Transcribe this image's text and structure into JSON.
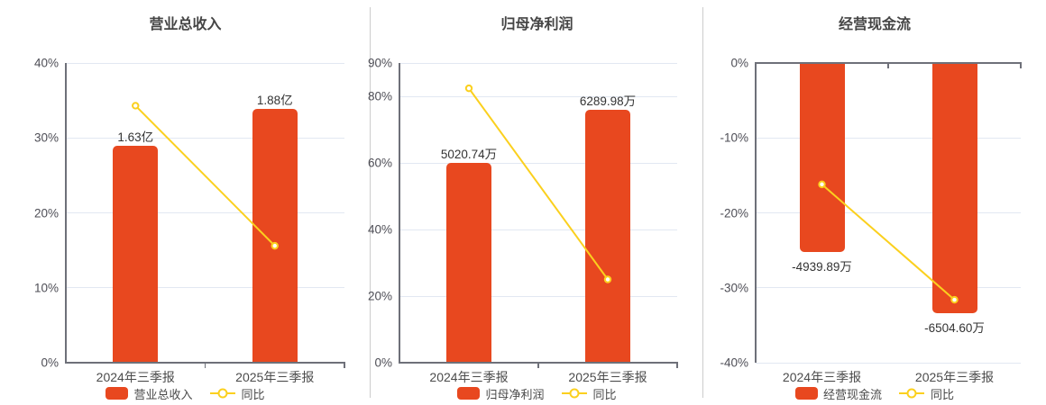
{
  "page": {
    "background": "#ffffff"
  },
  "colors": {
    "bar": "#E8481F",
    "line": "#FBD01E",
    "grid": "#E2E8F2",
    "axis": "#6E7079",
    "title_text": "#454545",
    "tick_text": "#4E4E56",
    "divider": "#cccccc"
  },
  "chart_data": [
    {
      "type": "bar",
      "title": "营业总收入",
      "categories": [
        "2024年三季报",
        "2025年三季报"
      ],
      "y_axis": {
        "min": 0,
        "max": 40,
        "unit": "%",
        "ticks": [
          {
            "value": 40,
            "label": "40%"
          },
          {
            "value": 30,
            "label": "30%"
          },
          {
            "value": 20,
            "label": "20%"
          },
          {
            "value": 10,
            "label": "10%"
          },
          {
            "value": 0,
            "label": "0%"
          }
        ]
      },
      "bar_series": {
        "name": "营业总收入",
        "color": "#E8481F",
        "value_labels": [
          "1.63亿",
          "1.88亿"
        ],
        "axis_values": [
          29.0,
          33.9
        ]
      },
      "line_series": {
        "name": "同比",
        "color": "#FBD01E",
        "axis_values": [
          34.3,
          15.6
        ]
      },
      "legend_position": "bottom",
      "grid": true
    },
    {
      "type": "bar",
      "title": "归母净利润",
      "categories": [
        "2024年三季报",
        "2025年三季报"
      ],
      "y_axis": {
        "min": 0,
        "max": 90,
        "unit": "%",
        "ticks": [
          {
            "value": 90,
            "label": "90%"
          },
          {
            "value": 80,
            "label": "80%"
          },
          {
            "value": 60,
            "label": "60%"
          },
          {
            "value": 40,
            "label": "40%"
          },
          {
            "value": 20,
            "label": "20%"
          },
          {
            "value": 0,
            "label": "0%"
          }
        ]
      },
      "bar_series": {
        "name": "归母净利润",
        "color": "#E8481F",
        "value_labels": [
          "5020.74万",
          "6289.98万"
        ],
        "axis_values": [
          60.0,
          76.0
        ]
      },
      "line_series": {
        "name": "同比",
        "color": "#FBD01E",
        "axis_values": [
          82.4,
          25.0
        ]
      },
      "legend_position": "bottom",
      "grid": true
    },
    {
      "type": "bar",
      "title": "经营现金流",
      "categories": [
        "2024年三季报",
        "2025年三季报"
      ],
      "y_axis": {
        "min": -40,
        "max": 0,
        "unit": "%",
        "ticks": [
          {
            "value": 0,
            "label": "0%"
          },
          {
            "value": -10,
            "label": "-10%"
          },
          {
            "value": -20,
            "label": "-20%"
          },
          {
            "value": -30,
            "label": "-30%"
          },
          {
            "value": -40,
            "label": "-40%"
          }
        ]
      },
      "bar_series": {
        "name": "经营现金流",
        "color": "#E8481F",
        "value_labels": [
          "-4939.89万",
          "-6504.60万"
        ],
        "axis_values": [
          -25.2,
          -33.4
        ]
      },
      "line_series": {
        "name": "同比",
        "color": "#FBD01E",
        "axis_values": [
          -16.2,
          -31.6
        ]
      },
      "legend_position": "bottom",
      "grid": true
    }
  ]
}
